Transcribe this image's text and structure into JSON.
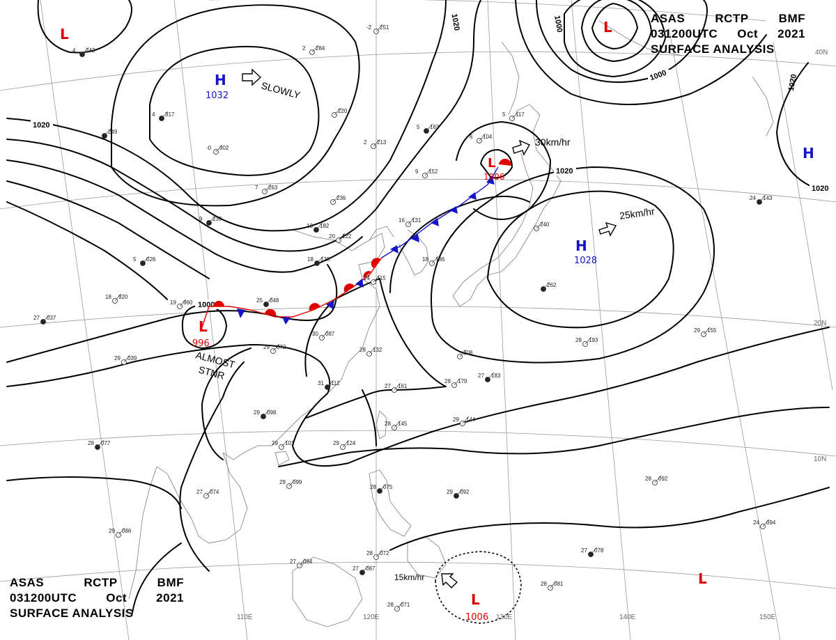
{
  "header": {
    "line1": [
      "ASAS",
      "RCTP",
      "BMF"
    ],
    "line2": [
      "031200UTC",
      "Oct",
      "2021"
    ],
    "line3": "SURFACE ANALYSIS"
  },
  "colors": {
    "high": "#1515c8",
    "low": "#e00000",
    "front_warm": "#e00000",
    "front_cold": "#1515c8",
    "isobar": "#000000",
    "geo": "#9a9a9a"
  },
  "pressure_systems": [
    {
      "type": "L",
      "value": "",
      "id": "low-nw"
    },
    {
      "type": "H",
      "value": "1032",
      "id": "high-mongolia"
    },
    {
      "type": "L",
      "value": "",
      "id": "low-ne"
    },
    {
      "type": "H",
      "value": "",
      "id": "high-east"
    },
    {
      "type": "L",
      "value": "1006",
      "id": "low-japan-sea"
    },
    {
      "type": "H",
      "value": "1028",
      "id": "high-pacific"
    },
    {
      "type": "L",
      "value": "996",
      "id": "low-tibet"
    },
    {
      "type": "L",
      "value": "1006",
      "id": "low-philippine-sea"
    },
    {
      "type": "L",
      "value": "",
      "id": "low-pacific-south"
    }
  ],
  "isobar_labels": [
    "1020",
    "1000",
    "1000",
    "1020",
    "1020",
    "1020",
    "1000"
  ],
  "motion_labels": [
    "SLOWLY",
    "30km/hr",
    "25km/hr",
    "15km/hr"
  ],
  "stationary_label": [
    "ALMOST",
    "STNR"
  ],
  "lon_labels": [
    "110E",
    "120E",
    "130E",
    "140E",
    "150E"
  ],
  "lat_labels": [
    "40N",
    "20N",
    "10N"
  ],
  "stations": [
    {
      "p": "242",
      "t": "4"
    },
    {
      "p": "284",
      "t": "2"
    },
    {
      "p": "251",
      "t": "-2"
    },
    {
      "p": "317",
      "t": "4"
    },
    {
      "p": "302",
      "t": "-0"
    },
    {
      "p": "220",
      "t": ""
    },
    {
      "p": "249",
      "t": ""
    },
    {
      "p": "263",
      "t": "7"
    },
    {
      "p": "236",
      "t": ""
    },
    {
      "p": "239",
      "t": "9"
    },
    {
      "p": "213",
      "t": "2"
    },
    {
      "p": "152",
      "t": "9"
    },
    {
      "p": "163",
      "t": "5"
    },
    {
      "p": "104",
      "t": "6"
    },
    {
      "p": "117",
      "t": "5"
    },
    {
      "p": "182",
      "t": "18"
    },
    {
      "p": "122",
      "t": "20"
    },
    {
      "p": "131",
      "t": "16"
    },
    {
      "p": "128",
      "t": "18"
    },
    {
      "p": "186",
      "t": "18"
    },
    {
      "p": "115",
      "t": "24"
    },
    {
      "p": "026",
      "t": "5"
    },
    {
      "p": "960",
      "t": "19"
    },
    {
      "p": "920",
      "t": "18"
    },
    {
      "p": "048",
      "t": "25"
    },
    {
      "p": "087",
      "t": "30"
    },
    {
      "p": "072",
      "t": "29"
    },
    {
      "p": "037",
      "t": "27"
    },
    {
      "p": "039",
      "t": "29"
    },
    {
      "p": "132",
      "t": "28"
    },
    {
      "p": "112",
      "t": "31"
    },
    {
      "p": "161",
      "t": "27"
    },
    {
      "p": "179",
      "t": "28"
    },
    {
      "p": "183",
      "t": "27"
    },
    {
      "p": "145",
      "t": "28"
    },
    {
      "p": "144",
      "t": "29"
    },
    {
      "p": "098",
      "t": "29"
    },
    {
      "p": "124",
      "t": "29"
    },
    {
      "p": "101",
      "t": "29"
    },
    {
      "p": "077",
      "t": "28"
    },
    {
      "p": "074",
      "t": "27"
    },
    {
      "p": "099",
      "t": "29"
    },
    {
      "p": "092",
      "t": "29"
    },
    {
      "p": "086",
      "t": "29"
    },
    {
      "p": "094",
      "t": "27"
    },
    {
      "p": "087",
      "t": "27"
    },
    {
      "p": "072",
      "t": "28"
    },
    {
      "p": "071",
      "t": "28"
    },
    {
      "p": "078",
      "t": "27"
    },
    {
      "p": "081",
      "t": "28"
    },
    {
      "p": "094",
      "t": "24"
    },
    {
      "p": "143",
      "t": "24"
    },
    {
      "p": "155",
      "t": "29"
    },
    {
      "p": "193",
      "t": "28"
    },
    {
      "p": "262",
      "t": ""
    },
    {
      "p": "208",
      "t": ""
    },
    {
      "p": "092",
      "t": "28"
    },
    {
      "p": "075",
      "t": "28"
    },
    {
      "p": "240",
      "t": ""
    }
  ]
}
